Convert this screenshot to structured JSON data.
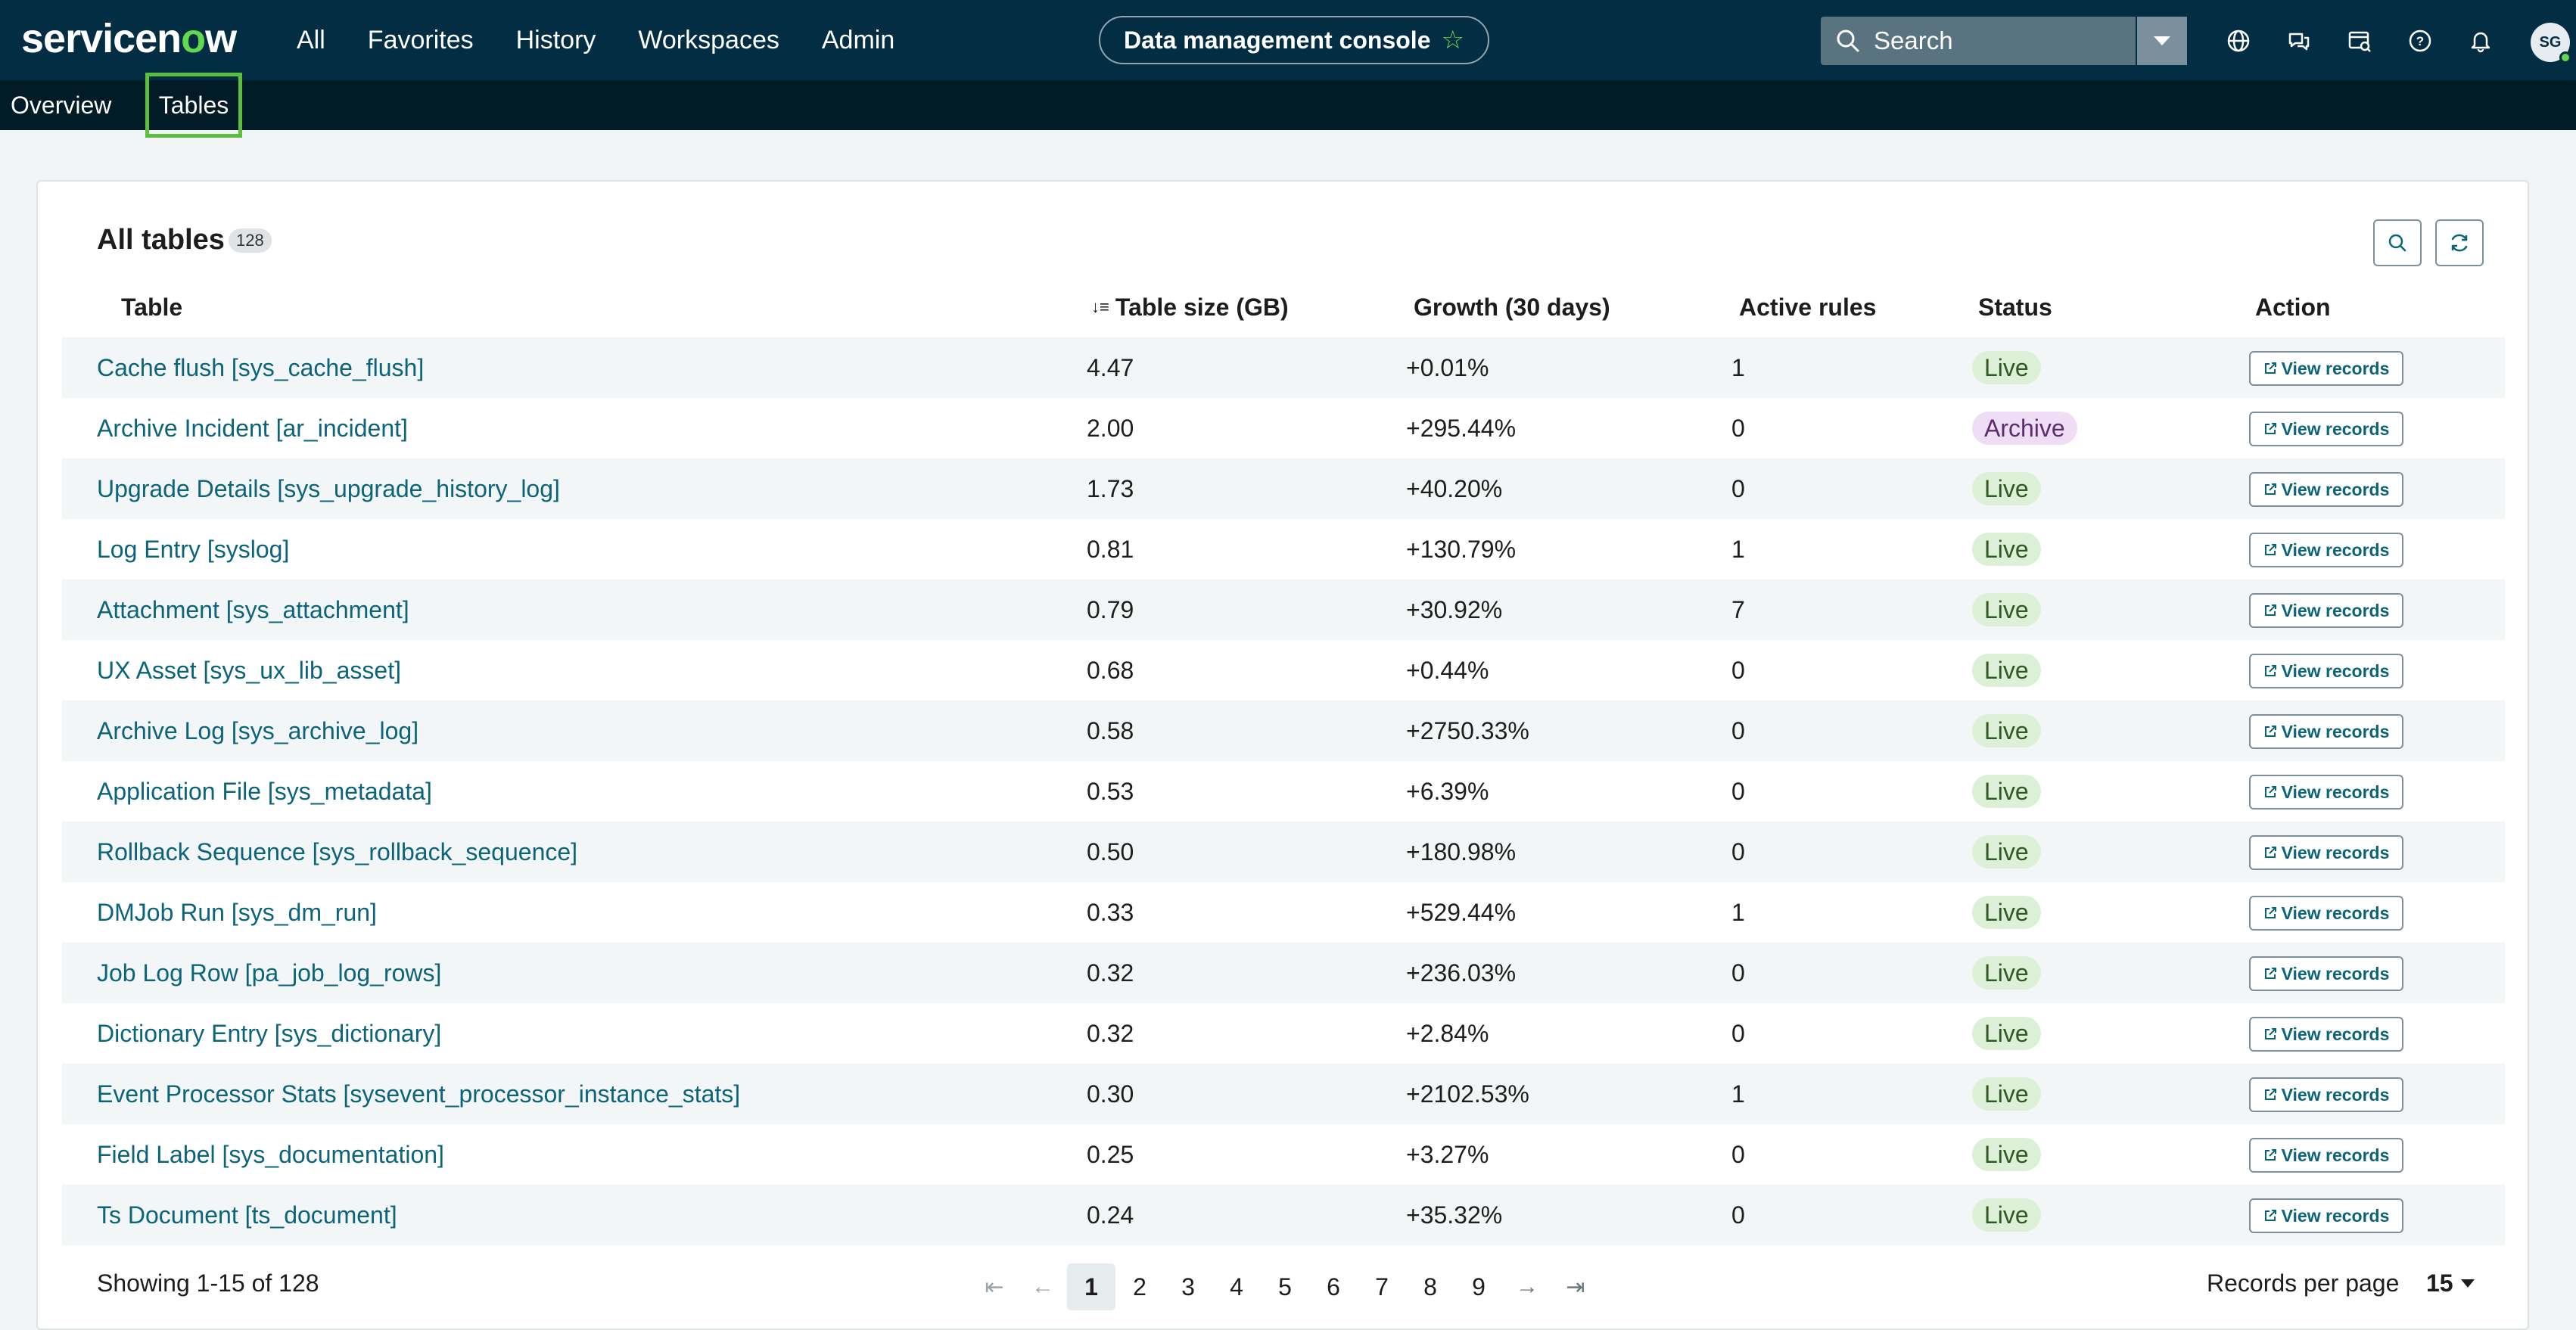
{
  "header": {
    "logo_text_a": "servicen",
    "logo_text_o": "o",
    "logo_text_b": "w",
    "nav": [
      "All",
      "Favorites",
      "History",
      "Workspaces",
      "Admin"
    ],
    "context_label": "Data management console",
    "search_placeholder": "Search",
    "avatar_initials": "SG",
    "icons": [
      "globe-icon",
      "chat-icon",
      "reports-icon",
      "help-icon",
      "bell-icon"
    ]
  },
  "subnav": {
    "tabs": [
      "Overview",
      "Tables"
    ],
    "selected": "Tables"
  },
  "card": {
    "title": "All tables",
    "count": "128",
    "columns": [
      "Table",
      "Table size (GB)",
      "Growth (30 days)",
      "Active rules",
      "Status",
      "Action"
    ],
    "action_label": "View records"
  },
  "rows": [
    {
      "name": "Cache flush [sys_cache_flush]",
      "size": "4.47",
      "growth": "+0.01%",
      "rules": "1",
      "status": "Live"
    },
    {
      "name": "Archive Incident [ar_incident]",
      "size": "2.00",
      "growth": "+295.44%",
      "rules": "0",
      "status": "Archive"
    },
    {
      "name": "Upgrade Details [sys_upgrade_history_log]",
      "size": "1.73",
      "growth": "+40.20%",
      "rules": "0",
      "status": "Live"
    },
    {
      "name": "Log Entry [syslog]",
      "size": "0.81",
      "growth": "+130.79%",
      "rules": "1",
      "status": "Live"
    },
    {
      "name": "Attachment [sys_attachment]",
      "size": "0.79",
      "growth": "+30.92%",
      "rules": "7",
      "status": "Live"
    },
    {
      "name": "UX Asset [sys_ux_lib_asset]",
      "size": "0.68",
      "growth": "+0.44%",
      "rules": "0",
      "status": "Live"
    },
    {
      "name": "Archive Log [sys_archive_log]",
      "size": "0.58",
      "growth": "+2750.33%",
      "rules": "0",
      "status": "Live"
    },
    {
      "name": "Application File [sys_metadata]",
      "size": "0.53",
      "growth": "+6.39%",
      "rules": "0",
      "status": "Live"
    },
    {
      "name": "Rollback Sequence [sys_rollback_sequence]",
      "size": "0.50",
      "growth": "+180.98%",
      "rules": "0",
      "status": "Live"
    },
    {
      "name": "DMJob Run [sys_dm_run]",
      "size": "0.33",
      "growth": "+529.44%",
      "rules": "1",
      "status": "Live"
    },
    {
      "name": "Job Log Row [pa_job_log_rows]",
      "size": "0.32",
      "growth": "+236.03%",
      "rules": "0",
      "status": "Live"
    },
    {
      "name": "Dictionary Entry [sys_dictionary]",
      "size": "0.32",
      "growth": "+2.84%",
      "rules": "0",
      "status": "Live"
    },
    {
      "name": "Event Processor Stats [sysevent_processor_instance_stats]",
      "size": "0.30",
      "growth": "+2102.53%",
      "rules": "1",
      "status": "Live"
    },
    {
      "name": "Field Label [sys_documentation]",
      "size": "0.25",
      "growth": "+3.27%",
      "rules": "0",
      "status": "Live"
    },
    {
      "name": "Ts Document [ts_document]",
      "size": "0.24",
      "growth": "+35.32%",
      "rules": "0",
      "status": "Live"
    }
  ],
  "footer": {
    "showing": "Showing 1-15 of 128",
    "pages": [
      "1",
      "2",
      "3",
      "4",
      "5",
      "6",
      "7",
      "8",
      "9"
    ],
    "current_page": "1",
    "rpp_label": "Records per page",
    "rpp_value": "15"
  },
  "colors": {
    "header_bg": "#032d42",
    "subnav_bg": "#011b27",
    "accent_green": "#62d84e",
    "link": "#0b6479",
    "live_bg": "#dcefd7",
    "archive_bg": "#efdcf5",
    "selected_tab_outline": "#5bbf3d"
  }
}
